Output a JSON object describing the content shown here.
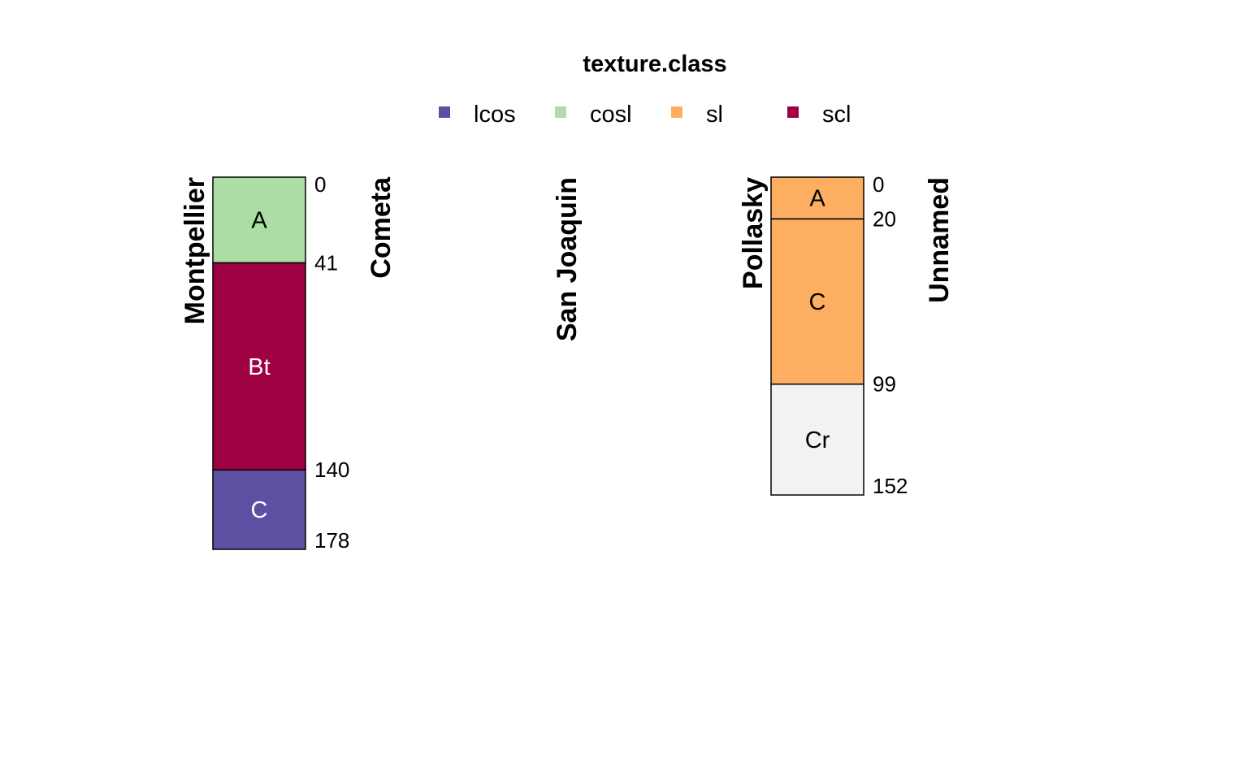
{
  "chart_data": {
    "type": "soil-profile-sketch",
    "legend": {
      "title": "texture.class",
      "entries": [
        {
          "label": "lcos",
          "color": "#5E4FA2"
        },
        {
          "label": "cosl",
          "color": "#ABDDA4"
        },
        {
          "label": "sl",
          "color": "#FDAE61"
        },
        {
          "label": "scl",
          "color": "#9E0142"
        }
      ]
    },
    "depth_max": 178,
    "profiles": [
      {
        "name": "Montpellier",
        "horizons": [
          {
            "name": "A",
            "top": 0,
            "bottom": 41,
            "texture": "cosl",
            "color": "#ABDDA4",
            "text_color": "#000000"
          },
          {
            "name": "Bt",
            "top": 41,
            "bottom": 140,
            "texture": "scl",
            "color": "#9E0142",
            "text_color": "#ffffff"
          },
          {
            "name": "C",
            "top": 140,
            "bottom": 178,
            "texture": "lcos",
            "color": "#5E4FA2",
            "text_color": "#ffffff"
          }
        ],
        "depth_labels": [
          "0",
          "41",
          "140",
          "178"
        ]
      },
      {
        "name": "Cometa",
        "horizons": [],
        "depth_labels": []
      },
      {
        "name": "San Joaquin",
        "horizons": [],
        "depth_labels": []
      },
      {
        "name": "Pollasky",
        "horizons": [
          {
            "name": "A",
            "top": 0,
            "bottom": 20,
            "texture": "sl",
            "color": "#FDAE61",
            "text_color": "#000000"
          },
          {
            "name": "C",
            "top": 20,
            "bottom": 99,
            "texture": "sl",
            "color": "#FDAE61",
            "text_color": "#000000"
          },
          {
            "name": "Cr",
            "top": 99,
            "bottom": 152,
            "texture": null,
            "color": "#F2F2F2",
            "text_color": "#000000"
          }
        ],
        "depth_labels": [
          "0",
          "20",
          "99",
          "152"
        ]
      },
      {
        "name": "Unnamed",
        "horizons": [],
        "depth_labels": []
      }
    ]
  }
}
